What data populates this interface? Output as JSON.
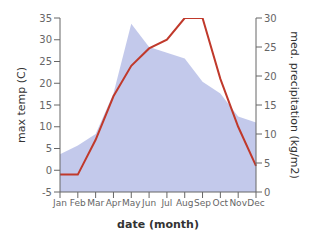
{
  "chart_data": {
    "type": "line",
    "xlabel": "date (month)",
    "ylabel": "max temp (C)",
    "y2label": "med. precipitation (kg/m2)",
    "categories": [
      "Jan",
      "Feb",
      "Mar",
      "Apr",
      "May",
      "Jun",
      "Jul",
      "Aug",
      "Sep",
      "Oct",
      "Nov",
      "Dec"
    ],
    "series": [
      {
        "type": "area",
        "axis": "y2",
        "color": "#b8c0e8",
        "values": [
          6.5,
          8,
          10,
          17,
          29,
          25,
          24,
          23,
          19,
          17,
          13,
          12
        ]
      },
      {
        "type": "line",
        "color": "#c0392b",
        "values": [
          -1,
          -1,
          7,
          17,
          24,
          28,
          30,
          35,
          35,
          21,
          10,
          1
        ]
      }
    ],
    "ylim": [
      -5,
      35
    ],
    "yticks": [
      -5,
      0,
      5,
      10,
      15,
      20,
      25,
      30,
      35
    ],
    "y2lim": [
      0,
      30
    ],
    "y2ticks": [
      0,
      5,
      10,
      15,
      20,
      25,
      30
    ],
    "grid": false
  }
}
